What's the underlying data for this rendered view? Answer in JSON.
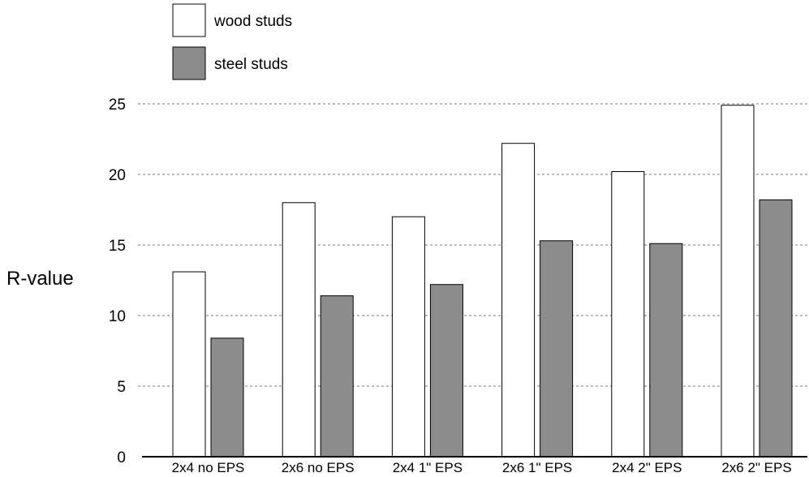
{
  "chart_data": {
    "type": "bar",
    "title": "",
    "xlabel": "",
    "ylabel": "R-value",
    "ylim": [
      0,
      25
    ],
    "yticks": [
      0,
      5,
      10,
      15,
      20,
      25
    ],
    "grid": "horizontal dashed",
    "legend_position": "top-left",
    "categories": [
      "2x4 no EPS",
      "2x6 no EPS",
      "2x4 1\" EPS",
      "2x6 1\" EPS",
      "2x4 2\" EPS",
      "2x6 2\" EPS"
    ],
    "series": [
      {
        "name": "wood studs",
        "color": "#ffffff",
        "values": [
          13.1,
          18.0,
          17.0,
          22.2,
          20.2,
          24.9
        ]
      },
      {
        "name": "steel studs",
        "color": "#8c8c8c",
        "values": [
          8.4,
          11.4,
          12.2,
          15.3,
          15.1,
          18.2
        ]
      }
    ]
  },
  "colors": {
    "bar_outline": "#000000",
    "grid": "#777777",
    "axis": "#000000"
  }
}
